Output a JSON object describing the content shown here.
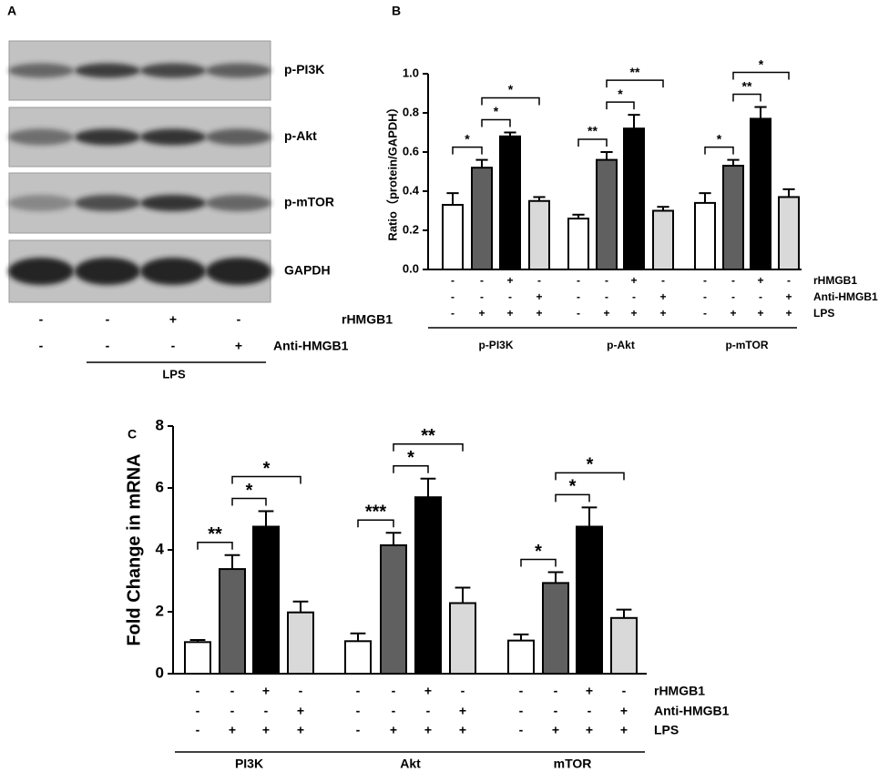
{
  "blot": {
    "label": "A",
    "rows": [
      "p-PI3K",
      "p-Akt",
      "p-mTOR",
      "GAPDH"
    ],
    "conditions": [
      {
        "label": "rHMGB1",
        "signs": [
          "-",
          "-",
          "+",
          "-"
        ]
      },
      {
        "label": "Anti-HMGB1",
        "signs": [
          "-",
          "-",
          "-",
          "+"
        ]
      }
    ],
    "lps": "LPS"
  },
  "chart_data": [
    {
      "type": "bar",
      "label": "B",
      "y_label": "Ratio（protein/GAPDH）",
      "categories": [
        "p-PI3K",
        "p-Akt",
        "p-mTOR"
      ],
      "series": [
        {
          "color": "#ffffff",
          "values": [
            0.33,
            0.26,
            0.34
          ],
          "errors": [
            0.06,
            0.02,
            0.05
          ]
        },
        {
          "color": "#606060",
          "values": [
            0.52,
            0.56,
            0.53
          ],
          "errors": [
            0.04,
            0.04,
            0.03
          ]
        },
        {
          "color": "#000000",
          "values": [
            0.68,
            0.72,
            0.77
          ],
          "errors": [
            0.02,
            0.07,
            0.06
          ]
        },
        {
          "color": "#d9d9d9",
          "values": [
            0.35,
            0.3,
            0.37
          ],
          "errors": [
            0.02,
            0.02,
            0.04
          ]
        }
      ],
      "ylim": [
        0,
        1
      ],
      "yticks": [
        {
          "value": 0,
          "label": "0.0"
        },
        0.2,
        0.4,
        0.6,
        0.8,
        {
          "value": 1,
          "label": "1.0"
        }
      ],
      "brackets": [
        [
          {
            "from": 0,
            "to": 1,
            "label": "*"
          },
          {
            "from": 1,
            "to": 2,
            "label": "*"
          },
          {
            "from": 1,
            "to": 3,
            "label": "*"
          }
        ],
        [
          {
            "from": 0,
            "to": 1,
            "label": "**"
          },
          {
            "from": 1,
            "to": 2,
            "label": "*"
          },
          {
            "from": 1,
            "to": 3,
            "label": "**"
          }
        ],
        [
          {
            "from": 0,
            "to": 1,
            "label": "*"
          },
          {
            "from": 1,
            "to": 2,
            "label": "**"
          },
          {
            "from": 1,
            "to": 3,
            "label": "*"
          }
        ]
      ],
      "conditions": [
        {
          "label": "rHMGB1",
          "signs": [
            "-",
            "-",
            "+",
            "-"
          ]
        },
        {
          "label": "Anti-HMGB1",
          "signs": [
            "-",
            "-",
            "-",
            "+"
          ]
        },
        {
          "label": "LPS",
          "signs": [
            "-",
            "+",
            "+",
            "+"
          ]
        }
      ]
    },
    {
      "type": "bar",
      "label": "C",
      "y_label": "Fold Change in mRNA",
      "categories": [
        "PI3K",
        "Akt",
        "mTOR"
      ],
      "series": [
        {
          "color": "#ffffff",
          "values": [
            1.02,
            1.05,
            1.07
          ],
          "errors": [
            0.07,
            0.25,
            0.2
          ]
        },
        {
          "color": "#606060",
          "values": [
            3.38,
            4.15,
            2.93
          ],
          "errors": [
            0.45,
            0.4,
            0.35
          ]
        },
        {
          "color": "#000000",
          "values": [
            4.75,
            5.7,
            4.75
          ],
          "errors": [
            0.5,
            0.6,
            0.62
          ]
        },
        {
          "color": "#d9d9d9",
          "values": [
            1.98,
            2.28,
            1.8
          ],
          "errors": [
            0.35,
            0.5,
            0.27
          ]
        }
      ],
      "ylim": [
        0,
        8
      ],
      "yticks": [
        0,
        2,
        4,
        6,
        8
      ],
      "brackets": [
        [
          {
            "from": 0,
            "to": 1,
            "label": "**"
          },
          {
            "from": 1,
            "to": 2,
            "label": "*"
          },
          {
            "from": 1,
            "to": 3,
            "label": "*"
          }
        ],
        [
          {
            "from": 0,
            "to": 1,
            "label": "***"
          },
          {
            "from": 1,
            "to": 2,
            "label": "*"
          },
          {
            "from": 1,
            "to": 3,
            "label": "**"
          }
        ],
        [
          {
            "from": 0,
            "to": 1,
            "label": "*"
          },
          {
            "from": 1,
            "to": 2,
            "label": "*"
          },
          {
            "from": 1,
            "to": 3,
            "label": "*"
          }
        ]
      ],
      "conditions": [
        {
          "label": "rHMGB1",
          "signs": [
            "-",
            "-",
            "+",
            "-"
          ]
        },
        {
          "label": "Anti-HMGB1",
          "signs": [
            "-",
            "-",
            "-",
            "+"
          ]
        },
        {
          "label": "LPS",
          "signs": [
            "-",
            "+",
            "+",
            "+"
          ]
        }
      ]
    }
  ]
}
